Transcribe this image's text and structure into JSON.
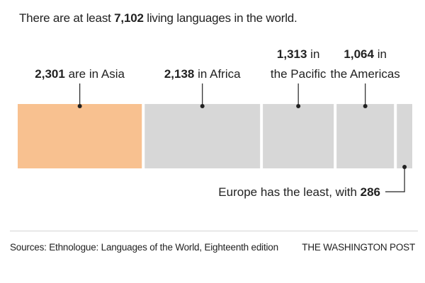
{
  "headline": {
    "prefix": "There are at least",
    "total": "7,102",
    "suffix": "living languages in the world."
  },
  "chart_data": {
    "type": "bar",
    "orientation": "horizontal-stacked",
    "categories": [
      "Asia",
      "Africa",
      "the Pacific",
      "the Americas",
      "Europe"
    ],
    "values": [
      2301,
      2138,
      1313,
      1064,
      286
    ],
    "colors": [
      "#f8c190",
      "#d7d7d7",
      "#d7d7d7",
      "#d7d7d7",
      "#d7d7d7"
    ],
    "labels": [
      {
        "value": "2,301",
        "lines": [
          " are in Asia"
        ]
      },
      {
        "value": "2,138",
        "lines": [
          " in Africa"
        ]
      },
      {
        "value": "1,313",
        "lines": [
          " in",
          "the Pacific"
        ]
      },
      {
        "value": "1,064",
        "lines": [
          " in",
          "the Americas"
        ]
      },
      {
        "value": "286",
        "prefix": "Europe has the least, with "
      }
    ]
  },
  "footer": {
    "source": "Sources: Ethnologue: Languages of the World, Eighteenth edition",
    "brand": "THE WASHINGTON POST"
  }
}
